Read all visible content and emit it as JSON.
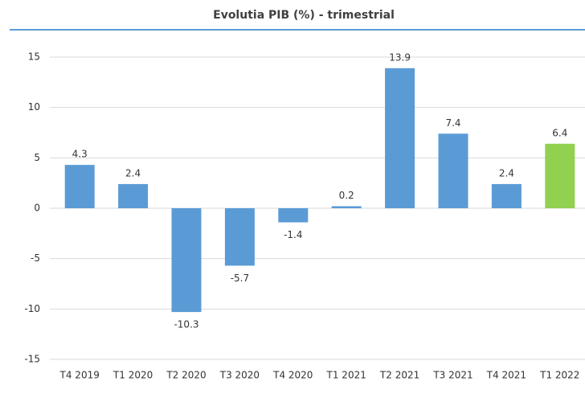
{
  "chart_data": {
    "type": "bar",
    "title": "Evolutia PIB (%) - trimestrial",
    "categories": [
      "T4 2019",
      "T1 2020",
      "T2 2020",
      "T3 2020",
      "T4 2020",
      "T1 2021",
      "T2 2021",
      "T3 2021",
      "T4 2021",
      "T1 2022"
    ],
    "values": [
      4.3,
      2.4,
      -10.3,
      -5.7,
      -1.4,
      0.2,
      13.9,
      7.4,
      2.4,
      6.4
    ],
    "colors": [
      "#5b9bd5",
      "#5b9bd5",
      "#5b9bd5",
      "#5b9bd5",
      "#5b9bd5",
      "#5b9bd5",
      "#5b9bd5",
      "#5b9bd5",
      "#5b9bd5",
      "#92d050"
    ],
    "ylim": [
      -15,
      15
    ],
    "yticks": [
      -15,
      -10,
      -5,
      0,
      5,
      10,
      15
    ],
    "grid": true
  }
}
